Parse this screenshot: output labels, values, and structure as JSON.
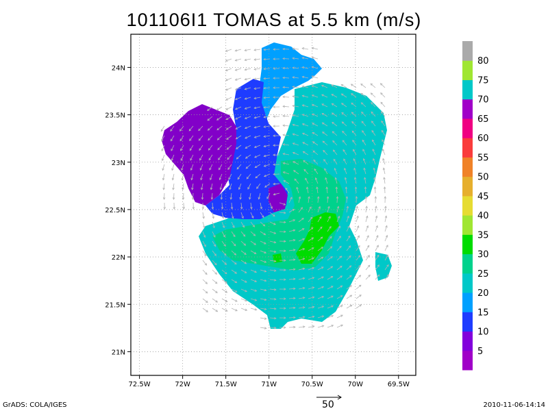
{
  "title": "101106I1 TOMAS at 5.5 km (m/s)",
  "footer": {
    "left": "GrADS: COLA/IGES",
    "right": "2010-11-06-14:14"
  },
  "reference_vector": {
    "label": "50",
    "value": 50
  },
  "map": {
    "lon_range": [
      -72.6,
      -69.3
    ],
    "lat_range": [
      20.75,
      24.35
    ],
    "grid": "dotted",
    "lon_ticks": [
      "72.5W",
      "72W",
      "71.5W",
      "71W",
      "70.5W",
      "70W",
      "69.5W"
    ],
    "lon_tick_values": [
      -72.5,
      -72.0,
      -71.5,
      -71.0,
      -70.5,
      -70.0,
      -69.5
    ],
    "lat_ticks": [
      "24N",
      "23.5N",
      "23N",
      "22.5N",
      "22N",
      "21.5N",
      "21N"
    ],
    "lat_tick_values": [
      24.0,
      23.5,
      23.0,
      22.5,
      22.0,
      21.5,
      21.0
    ]
  },
  "colorbar": {
    "labels": [
      "5",
      "10",
      "15",
      "20",
      "25",
      "30",
      "35",
      "40",
      "45",
      "50",
      "55",
      "60",
      "65",
      "70",
      "75",
      "80"
    ],
    "colors": [
      "#a000c8",
      "#8200dc",
      "#1e3cff",
      "#00a0ff",
      "#00c8c8",
      "#00d28c",
      "#00dc00",
      "#a0e632",
      "#e6dc32",
      "#e6af2d",
      "#f08228",
      "#fa3c3c",
      "#f00082",
      "#a000c8",
      "#00c8c8",
      "#a0e632",
      "#aaaaaa"
    ]
  },
  "chart_data": {
    "type": "heatmap",
    "title": "101106I1 TOMAS at 5.5 km (m/s)",
    "quantity": "wind speed",
    "units": "m/s",
    "vectors": "wind",
    "x_axis": "longitude",
    "y_axis": "latitude",
    "xlim": [
      -72.6,
      -69.3
    ],
    "ylim": [
      20.75,
      24.35
    ],
    "contour_levels": [
      5,
      10,
      15,
      20,
      25,
      30,
      35,
      40,
      45,
      50,
      55,
      60,
      65,
      70,
      75,
      80
    ],
    "regions": [
      {
        "name": "north",
        "value_range": [
          15,
          20
        ],
        "lon": [
          -71.0,
          -70.4
        ],
        "lat": [
          23.3,
          24.2
        ]
      },
      {
        "name": "northwest",
        "value_range": [
          5,
          10
        ],
        "lon": [
          -72.3,
          -71.0
        ],
        "lat": [
          22.7,
          23.6
        ]
      },
      {
        "name": "northeast",
        "value_range": [
          20,
          25
        ],
        "lon": [
          -70.6,
          -69.5
        ],
        "lat": [
          22.5,
          23.9
        ]
      },
      {
        "name": "center",
        "value_range": [
          25,
          30
        ],
        "lon": [
          -71.2,
          -70.0
        ],
        "lat": [
          21.6,
          22.9
        ]
      },
      {
        "name": "core-east",
        "value_range": [
          30,
          35
        ],
        "lon": [
          -70.6,
          -70.3
        ],
        "lat": [
          21.9,
          22.5
        ]
      }
    ]
  }
}
